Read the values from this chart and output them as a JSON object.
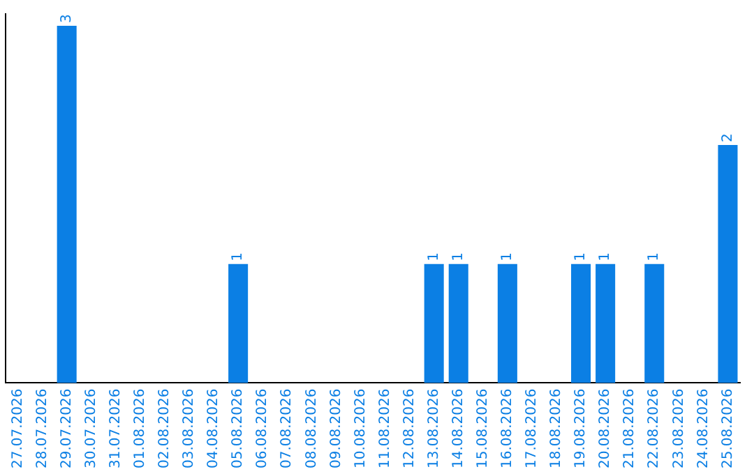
{
  "chart_data": {
    "type": "bar",
    "categories": [
      "27.07.2026",
      "28.07.2026",
      "29.07.2026",
      "30.07.2026",
      "31.07.2026",
      "01.08.2026",
      "02.08.2026",
      "03.08.2026",
      "04.08.2026",
      "05.08.2026",
      "06.08.2026",
      "07.08.2026",
      "08.08.2026",
      "09.08.2026",
      "10.08.2026",
      "11.08.2026",
      "12.08.2026",
      "13.08.2026",
      "14.08.2026",
      "15.08.2026",
      "16.08.2026",
      "17.08.2026",
      "18.08.2026",
      "19.08.2026",
      "20.08.2026",
      "21.08.2026",
      "22.08.2026",
      "23.08.2026",
      "24.08.2026",
      "25.08.2026"
    ],
    "values": [
      0,
      0,
      3,
      0,
      0,
      0,
      0,
      0,
      0,
      1,
      0,
      0,
      0,
      0,
      0,
      0,
      0,
      1,
      1,
      0,
      1,
      0,
      0,
      1,
      1,
      0,
      1,
      0,
      0,
      2
    ],
    "value_labels": [
      null,
      null,
      "3",
      null,
      null,
      null,
      null,
      null,
      null,
      "1",
      null,
      null,
      null,
      null,
      null,
      null,
      null,
      "1",
      "1",
      null,
      "1",
      null,
      null,
      "1",
      "1",
      null,
      "1",
      null,
      null,
      "2"
    ],
    "color": "#0b7fe4",
    "ylim": [
      0,
      3.1
    ],
    "tick_labels": "x",
    "grid": false,
    "legend": false
  }
}
